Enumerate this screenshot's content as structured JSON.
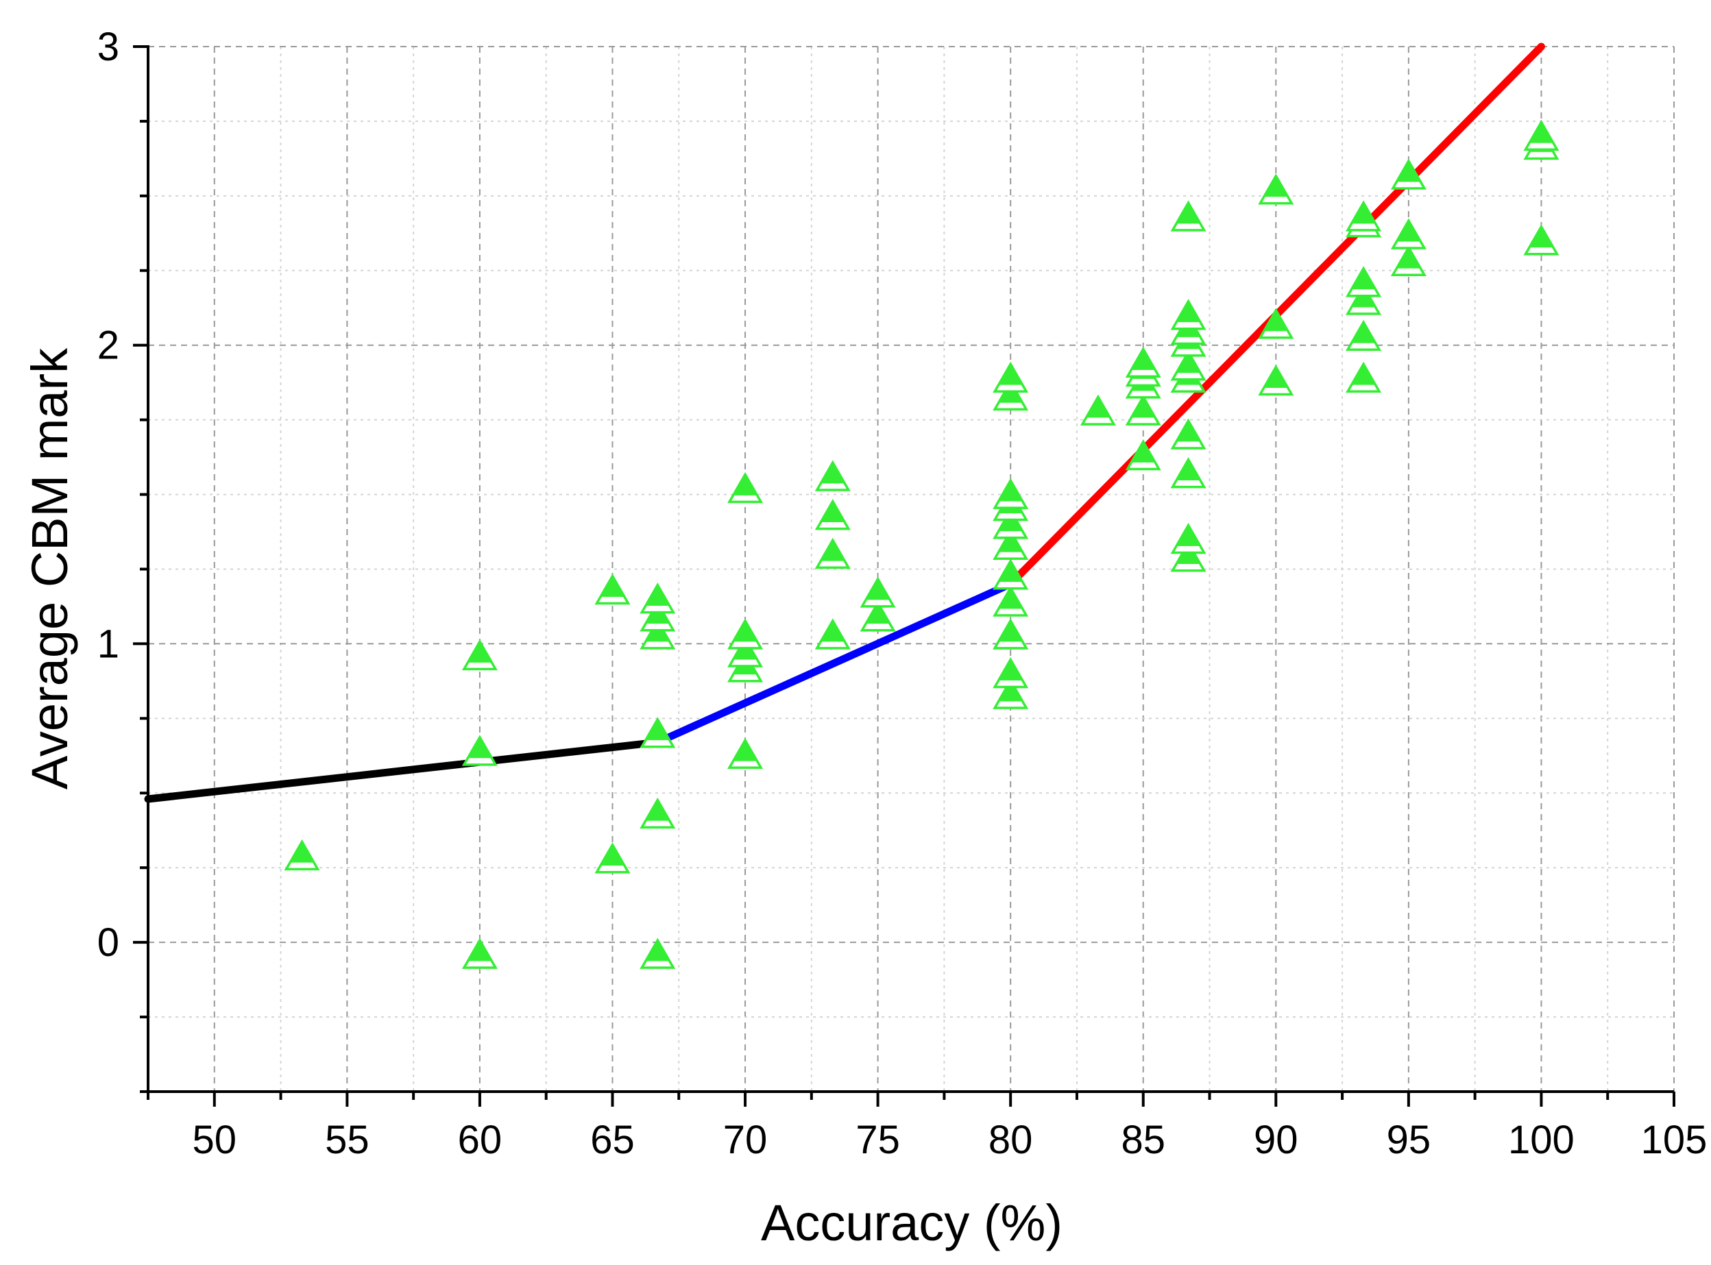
{
  "chart_data": {
    "type": "scatter",
    "title": "",
    "xlabel": "Accuracy (%)",
    "ylabel": "Average CBM mark",
    "xlim": [
      47.5,
      105
    ],
    "ylim": [
      -0.5,
      3
    ],
    "x_ticks": [
      50,
      55,
      60,
      65,
      70,
      75,
      80,
      85,
      90,
      95,
      100,
      105
    ],
    "x_tick_labels": [
      "50",
      "55",
      "60",
      "65",
      "70",
      "75",
      "80",
      "85",
      "90",
      "95",
      "100",
      "105"
    ],
    "y_ticks": [
      0,
      1,
      2,
      3
    ],
    "y_tick_labels": [
      "0",
      "1",
      "2",
      "3"
    ],
    "grid": true,
    "legend": "none",
    "series": [
      {
        "marker": "triangle",
        "color": "#33ee33",
        "x": [
          53.3,
          60,
          60,
          60,
          65,
          65,
          66.7,
          66.7,
          66.7,
          66.7,
          66.7,
          66.7,
          70,
          70,
          70,
          70,
          70,
          73.3,
          73.3,
          73.3,
          73.3,
          75,
          75,
          80,
          80,
          80,
          80,
          80,
          80,
          80,
          80,
          80,
          80,
          80,
          80,
          83.3,
          85,
          85,
          85,
          85,
          85,
          86.7,
          86.7,
          86.7,
          86.7,
          86.7,
          86.7,
          86.7,
          86.7,
          86.7,
          86.7,
          90,
          90,
          90,
          93.3,
          93.3,
          93.3,
          93.3,
          93.3,
          93.3,
          95,
          95,
          95,
          100,
          100,
          100
        ],
        "y": [
          0.28,
          -0.05,
          0.63,
          0.95,
          0.27,
          1.17,
          -0.05,
          0.42,
          0.69,
          1.02,
          1.08,
          1.14,
          0.62,
          0.91,
          0.96,
          1.02,
          1.51,
          1.02,
          1.29,
          1.42,
          1.55,
          1.08,
          1.16,
          0.82,
          0.89,
          1.02,
          1.13,
          1.22,
          1.32,
          1.39,
          1.45,
          1.49,
          1.82,
          1.88,
          1.02,
          1.77,
          1.62,
          1.77,
          1.86,
          1.9,
          1.93,
          1.28,
          1.34,
          1.56,
          1.69,
          1.88,
          1.92,
          2.0,
          2.04,
          2.09,
          2.42,
          1.87,
          2.06,
          2.51,
          1.88,
          2.02,
          2.14,
          2.2,
          2.4,
          2.42,
          2.27,
          2.36,
          2.56,
          2.34,
          2.66,
          2.69
        ]
      }
    ],
    "fit_lines": [
      {
        "color": "#000000",
        "x": [
          47.5,
          66.7
        ],
        "y": [
          0.48,
          0.67
        ]
      },
      {
        "color": "#0000ff",
        "x": [
          66.7,
          80
        ],
        "y": [
          0.67,
          1.2
        ]
      },
      {
        "color": "#ff0000",
        "x": [
          80,
          100
        ],
        "y": [
          1.2,
          3.0
        ]
      }
    ]
  }
}
